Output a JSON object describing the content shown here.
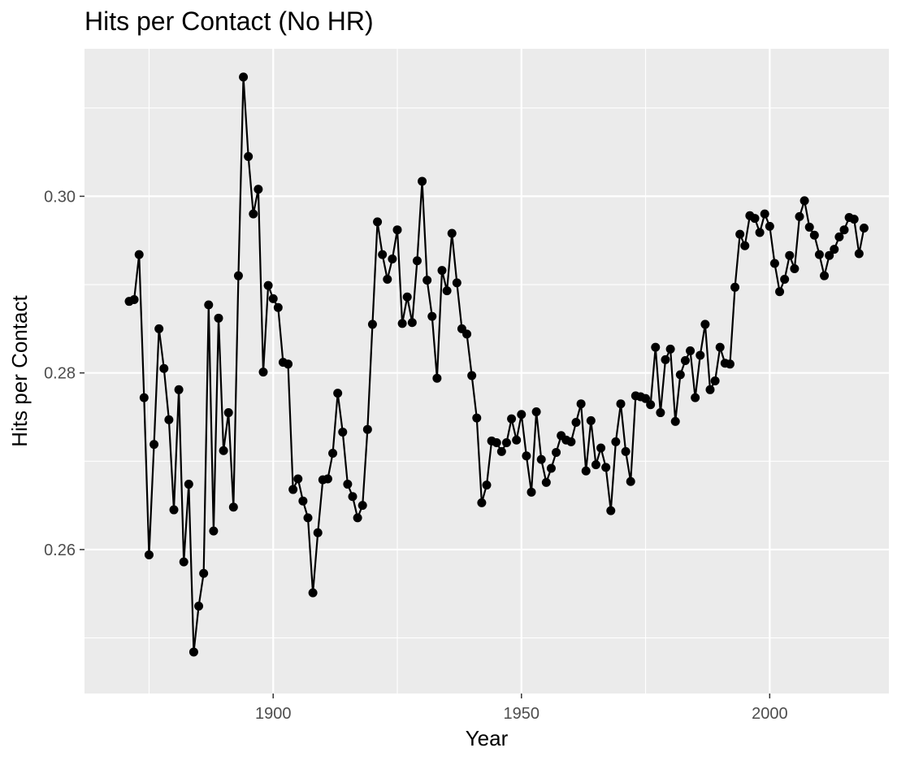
{
  "chart_data": {
    "type": "line",
    "title": "Hits per Contact (No HR)",
    "xlabel": "Year",
    "ylabel": "Hits per Contact",
    "xlim": [
      1862,
      2024
    ],
    "ylim": [
      0.2437,
      0.3167
    ],
    "x_ticks": [
      1900,
      1950,
      2000
    ],
    "x_tick_labels": [
      "1900",
      "1950",
      "2000"
    ],
    "y_ticks": [
      0.26,
      0.28,
      0.3
    ],
    "y_tick_labels": [
      "0.26",
      "0.28",
      "0.30"
    ],
    "grid": true,
    "legend": "none",
    "colors": {
      "panel": "#ebebeb",
      "grid": "#ffffff",
      "line": "#000000",
      "point": "#000000"
    },
    "series": [
      {
        "x": [
          1871,
          1872,
          1873,
          1874,
          1875,
          1876,
          1877,
          1878,
          1879,
          1880,
          1881,
          1882,
          1883,
          1884,
          1885,
          1886,
          1887,
          1888,
          1889,
          1890,
          1891,
          1892,
          1893,
          1894,
          1895,
          1896,
          1897,
          1898,
          1899,
          1900,
          1901,
          1902,
          1903,
          1904,
          1905,
          1906,
          1907,
          1908,
          1909,
          1910,
          1911,
          1912,
          1913,
          1914,
          1915,
          1916,
          1917,
          1918,
          1919,
          1920,
          1921,
          1922,
          1923,
          1924,
          1925,
          1926,
          1927,
          1928,
          1929,
          1930,
          1931,
          1932,
          1933,
          1934,
          1935,
          1936,
          1937,
          1938,
          1939,
          1940,
          1941,
          1942,
          1943,
          1944,
          1945,
          1946,
          1947,
          1948,
          1949,
          1950,
          1951,
          1952,
          1953,
          1954,
          1955,
          1956,
          1957,
          1958,
          1959,
          1960,
          1961,
          1962,
          1963,
          1964,
          1965,
          1966,
          1967,
          1968,
          1969,
          1970,
          1971,
          1972,
          1973,
          1974,
          1975,
          1976,
          1977,
          1978,
          1979,
          1980,
          1981,
          1982,
          1983,
          1984,
          1985,
          1986,
          1987,
          1988,
          1989,
          1990,
          1991,
          1992,
          1993,
          1994,
          1995,
          1996,
          1997,
          1998,
          1999,
          2000,
          2001,
          2002,
          2003,
          2004,
          2005,
          2006,
          2007,
          2008,
          2009,
          2010,
          2011,
          2012,
          2013,
          2014,
          2015,
          2016,
          2017,
          2018,
          2019
        ],
        "y": [
          0.2881,
          0.2883,
          0.2934,
          0.2772,
          0.2594,
          0.2719,
          0.285,
          0.2805,
          0.2747,
          0.2645,
          0.2781,
          0.2586,
          0.2674,
          0.2484,
          0.2536,
          0.2573,
          0.2877,
          0.2621,
          0.2862,
          0.2712,
          0.2755,
          0.2648,
          0.291,
          0.3135,
          0.3045,
          0.298,
          0.3008,
          0.2801,
          0.2899,
          0.2884,
          0.2874,
          0.2812,
          0.281,
          0.2668,
          0.268,
          0.2655,
          0.2636,
          0.2551,
          0.2619,
          0.2679,
          0.268,
          0.2709,
          0.2777,
          0.2733,
          0.2674,
          0.266,
          0.2636,
          0.265,
          0.2736,
          0.2855,
          0.2971,
          0.2934,
          0.2906,
          0.2929,
          0.2962,
          0.2856,
          0.2886,
          0.2857,
          0.2927,
          0.3017,
          0.2905,
          0.2864,
          0.2794,
          0.2916,
          0.2893,
          0.2958,
          0.2902,
          0.285,
          0.2844,
          0.2797,
          0.2749,
          0.2653,
          0.2673,
          0.2723,
          0.2721,
          0.2711,
          0.2721,
          0.2748,
          0.2724,
          0.2753,
          0.2706,
          0.2665,
          0.2756,
          0.2702,
          0.2676,
          0.2692,
          0.271,
          0.2729,
          0.2724,
          0.2722,
          0.2744,
          0.2765,
          0.2689,
          0.2746,
          0.2696,
          0.2715,
          0.2693,
          0.2644,
          0.2722,
          0.2765,
          0.2711,
          0.2677,
          0.2774,
          0.2773,
          0.2771,
          0.2764,
          0.2829,
          0.2755,
          0.2815,
          0.2827,
          0.2745,
          0.2798,
          0.2814,
          0.2825,
          0.2772,
          0.282,
          0.2855,
          0.2781,
          0.2791,
          0.2829,
          0.2811,
          0.281,
          0.2897,
          0.2957,
          0.2944,
          0.2978,
          0.2975,
          0.2959,
          0.298,
          0.2966,
          0.2924,
          0.2892,
          0.2906,
          0.2933,
          0.2918,
          0.2977,
          0.2995,
          0.2965,
          0.2956,
          0.2934,
          0.291,
          0.2933,
          0.294,
          0.2954,
          0.2962,
          0.2976,
          0.2974,
          0.2935,
          0.2964
        ]
      }
    ]
  }
}
